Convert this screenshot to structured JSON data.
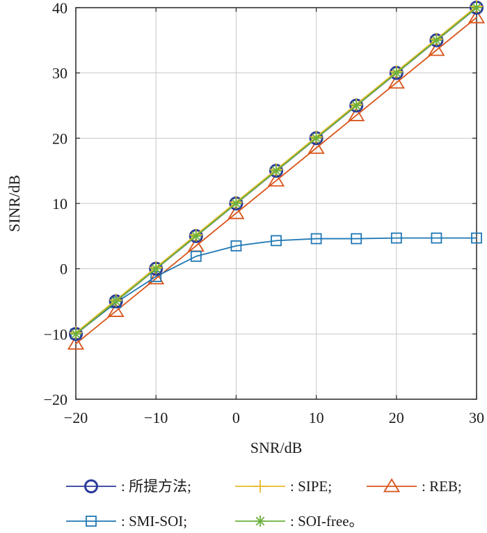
{
  "chart_data": {
    "type": "line",
    "xlabel": "SNR/dB",
    "ylabel": "SINR/dB",
    "xlim": [
      -20,
      30
    ],
    "ylim": [
      -20,
      40
    ],
    "xticks": [
      -20,
      -10,
      0,
      10,
      20,
      30
    ],
    "yticks": [
      -20,
      -10,
      0,
      10,
      20,
      30,
      40
    ],
    "x_tick_labels": [
      "−20",
      "−10",
      "0",
      "10",
      "20",
      "30"
    ],
    "y_tick_labels": [
      "−20",
      "−10",
      "0",
      "10",
      "20",
      "30",
      "40"
    ],
    "grid": true,
    "legend_position": "bottom",
    "x": [
      -20,
      -15,
      -10,
      -5,
      0,
      5,
      10,
      15,
      20,
      25,
      30
    ],
    "series": [
      {
        "name": "所提方法",
        "legend_label": ": 所提方法;",
        "color": "#2a3a9a",
        "marker": "circle",
        "values": [
          -10,
          -5,
          0,
          5,
          10,
          15,
          20,
          25,
          30,
          35,
          40
        ]
      },
      {
        "name": "SIPE",
        "legend_label": ": SIPE;",
        "color": "#e8b92a",
        "marker": "plus",
        "values": [
          -9.8,
          -4.8,
          0.2,
          5.2,
          10.2,
          15.2,
          20.2,
          25.2,
          30.2,
          35.2,
          40.2
        ]
      },
      {
        "name": "REB",
        "legend_label": ": REB;",
        "color": "#d9541a",
        "marker": "triangle",
        "values": [
          -11.5,
          -6.5,
          -1.5,
          3.5,
          8.5,
          13.5,
          18.5,
          23.5,
          28.5,
          33.5,
          38.5
        ]
      },
      {
        "name": "SMI-SOI",
        "legend_label": ": SMI-SOI;",
        "color": "#1f77b4",
        "marker": "square",
        "values": [
          -10,
          -5.2,
          -1.2,
          1.9,
          3.5,
          4.3,
          4.6,
          4.6,
          4.7,
          4.7,
          4.7
        ]
      },
      {
        "name": "SOI-free",
        "legend_label": ": SOI-free。",
        "color": "#6ab03c",
        "marker": "star",
        "values": [
          -10,
          -5,
          0,
          5,
          10,
          15,
          20,
          25,
          30,
          35,
          40
        ]
      }
    ]
  }
}
